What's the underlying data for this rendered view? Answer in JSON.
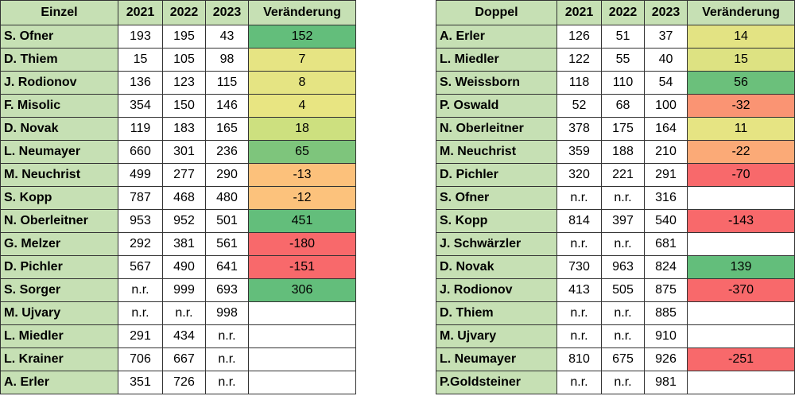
{
  "tables": [
    {
      "header": [
        "Einzel",
        "2021",
        "2022",
        "2023",
        "Veränderung"
      ],
      "rows": [
        [
          "S. Ofner",
          193,
          195,
          43,
          152
        ],
        [
          "D. Thiem",
          15,
          105,
          98,
          7
        ],
        [
          "J. Rodionov",
          136,
          123,
          115,
          8
        ],
        [
          "F. Misolic",
          354,
          150,
          146,
          4
        ],
        [
          "D. Novak",
          119,
          183,
          165,
          18
        ],
        [
          "L. Neumayer",
          660,
          301,
          236,
          65
        ],
        [
          "M. Neuchrist",
          499,
          277,
          290,
          -13
        ],
        [
          "S. Kopp",
          787,
          468,
          480,
          -12
        ],
        [
          "N. Oberleitner",
          953,
          952,
          501,
          451
        ],
        [
          "G. Melzer",
          292,
          381,
          561,
          -180
        ],
        [
          "D. Pichler",
          567,
          490,
          641,
          -151
        ],
        [
          "S. Sorger",
          "n.r.",
          999,
          693,
          306
        ],
        [
          "M. Ujvary",
          "n.r.",
          "n.r.",
          998,
          null
        ],
        [
          "L. Miedler",
          291,
          434,
          "n.r.",
          null
        ],
        [
          "L. Krainer",
          706,
          667,
          "n.r.",
          null
        ],
        [
          "A. Erler",
          351,
          726,
          "n.r.",
          null
        ]
      ],
      "change_colors": [
        "#63be7b",
        "#e6e483",
        "#e5e483",
        "#e8e582",
        "#cde07f",
        "#7ec57c",
        "#fcc17b",
        "#fcc27c",
        "#63be7b",
        "#f8696b",
        "#f8696b",
        "#63be7b",
        null,
        null,
        null,
        null
      ]
    },
    {
      "header": [
        "Doppel",
        "2021",
        "2022",
        "2023",
        "Veränderung"
      ],
      "rows": [
        [
          "A. Erler",
          126,
          51,
          37,
          14
        ],
        [
          "L. Miedler",
          122,
          55,
          40,
          15
        ],
        [
          "S. Weissborn",
          118,
          110,
          54,
          56
        ],
        [
          "P. Oswald",
          52,
          68,
          100,
          -32
        ],
        [
          "N. Oberleitner",
          378,
          175,
          164,
          11
        ],
        [
          "M. Neuchrist",
          359,
          188,
          210,
          -22
        ],
        [
          "D. Pichler",
          320,
          221,
          291,
          -70
        ],
        [
          "S. Ofner",
          "n.r.",
          "n.r.",
          316,
          null
        ],
        [
          "S. Kopp",
          814,
          397,
          540,
          -143
        ],
        [
          "J. Schwärzler",
          "n.r.",
          "n.r.",
          681,
          null
        ],
        [
          "D. Novak",
          730,
          963,
          824,
          139
        ],
        [
          "J. Rodionov",
          413,
          505,
          875,
          -370
        ],
        [
          "D. Thiem",
          "n.r.",
          "n.r.",
          885,
          null
        ],
        [
          "M. Ujvary",
          "n.r.",
          "n.r.",
          910,
          null
        ],
        [
          "L. Neumayer",
          810,
          675,
          926,
          -251
        ],
        [
          "P.Goldsteiner",
          "n.r.",
          "n.r.",
          981,
          null
        ]
      ],
      "change_colors": [
        "#e3e383",
        "#dde282",
        "#6bc07b",
        "#fa9473",
        "#e6e483",
        "#fbaa77",
        "#f8696b",
        null,
        "#f8696b",
        null,
        "#63be7b",
        "#f8696b",
        null,
        null,
        "#f8696b",
        null
      ]
    }
  ]
}
